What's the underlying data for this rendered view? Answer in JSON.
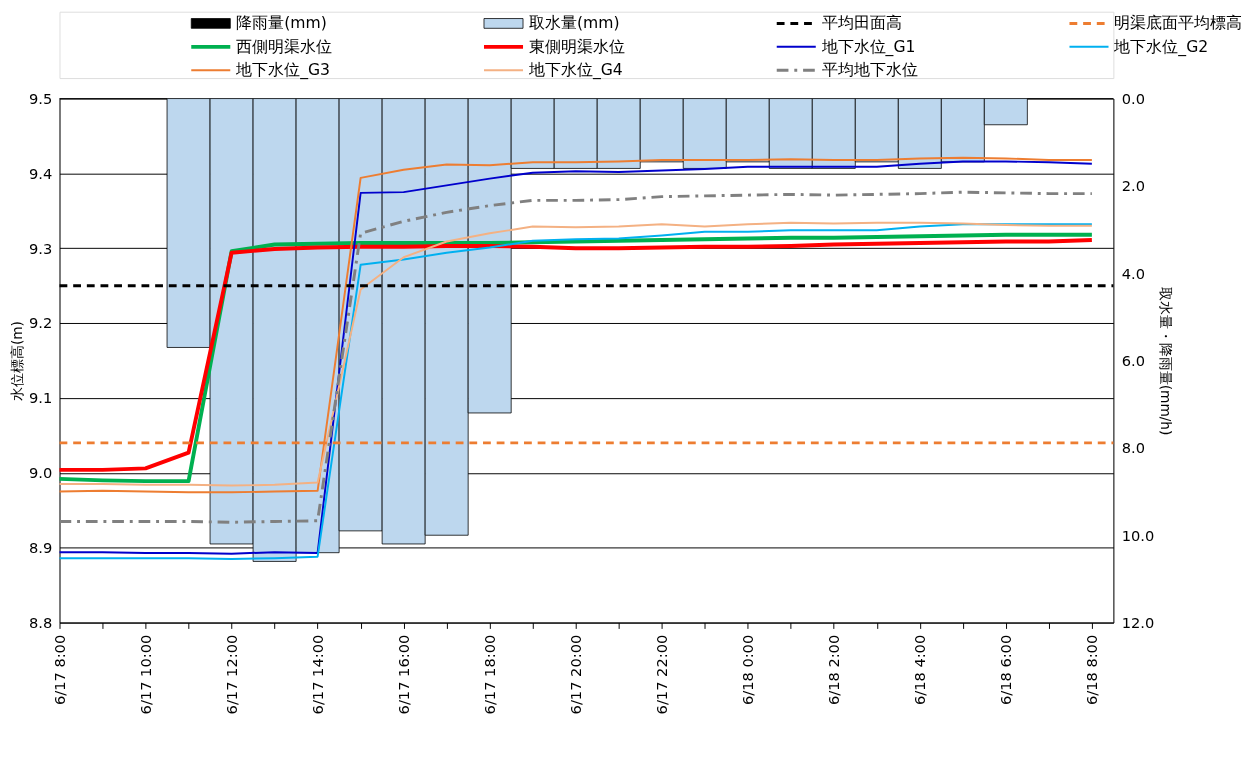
{
  "chart_data": {
    "type": "line",
    "categories": [
      "6/17 8:00",
      null,
      "6/17 10:00",
      null,
      "6/17 12:00",
      null,
      "6/17 14:00",
      null,
      "6/17 16:00",
      null,
      "6/17 18:00",
      null,
      "6/17 20:00",
      null,
      "6/17 22:00",
      null,
      "6/18 0:00",
      null,
      "6/18 2:00",
      null,
      "6/18 4:00",
      null,
      "6/18 6:00",
      null,
      "6/18 8:00"
    ],
    "ylabel": "水位標高(m)",
    "y2label": "取水量・降雨量(mm/h)",
    "ylim": [
      8.8,
      9.5
    ],
    "yticks": [
      {
        "value": 8.8,
        "label": "8.8"
      },
      {
        "value": 8.9,
        "label": "8.9"
      },
      {
        "value": 9.0,
        "label": "9.0"
      },
      {
        "value": 9.1,
        "label": "9.1"
      },
      {
        "value": 9.2,
        "label": "9.2"
      },
      {
        "value": 9.3,
        "label": "9.3"
      },
      {
        "value": 9.4,
        "label": "9.4"
      },
      {
        "value": 9.5,
        "label": "9.5"
      }
    ],
    "y2lim": [
      12,
      0
    ],
    "y2ticks": [
      {
        "value": 0,
        "label": "0.0"
      },
      {
        "value": 2,
        "label": "2.0"
      },
      {
        "value": 4,
        "label": "4.0"
      },
      {
        "value": 6,
        "label": "6.0"
      },
      {
        "value": 8,
        "label": "8.0"
      },
      {
        "value": 10,
        "label": "10.0"
      },
      {
        "value": 12,
        "label": "12.0"
      }
    ],
    "grid": "y",
    "legend": "top",
    "series": [
      {
        "name": "降雨量(mm)",
        "type": "bar",
        "axis": "y2",
        "color": "#000000",
        "values": [
          0,
          0,
          0,
          0,
          0,
          0,
          0,
          0,
          0,
          0,
          0,
          0,
          0,
          0,
          0,
          0,
          0,
          0,
          0,
          0,
          0,
          0,
          0,
          0,
          0
        ]
      },
      {
        "name": "取水量(mm)",
        "type": "bar",
        "axis": "y2",
        "color": "#bdd7ee",
        "values": [
          0,
          0,
          0,
          5.7,
          10.2,
          10.6,
          10.4,
          9.9,
          10.2,
          10.0,
          7.2,
          1.6,
          1.6,
          1.6,
          1.45,
          1.6,
          1.45,
          1.6,
          1.6,
          1.45,
          1.6,
          1.45,
          0.6,
          0,
          0
        ]
      },
      {
        "name": "西側明渠水位",
        "color": "#00b050",
        "line_style": "solid",
        "values": [
          8.992,
          8.99,
          8.989,
          8.989,
          9.296,
          9.305,
          9.306,
          9.307,
          9.307,
          9.307,
          9.307,
          9.308,
          9.309,
          9.31,
          9.311,
          9.312,
          9.313,
          9.314,
          9.314,
          9.315,
          9.316,
          9.317,
          9.318,
          9.318,
          9.318
        ]
      },
      {
        "name": "東側明渠水位",
        "color": "#ff0000",
        "line_style": "solid",
        "values": [
          9.004,
          9.004,
          9.006,
          9.027,
          9.294,
          9.299,
          9.301,
          9.302,
          9.302,
          9.303,
          9.303,
          9.302,
          9.3,
          9.3,
          9.301,
          9.302,
          9.302,
          9.303,
          9.305,
          9.306,
          9.307,
          9.308,
          9.309,
          9.309,
          9.311
        ]
      },
      {
        "name": "地下水位_G1",
        "color": "#0000cc",
        "line_style": "solid",
        "values": [
          8.894,
          8.894,
          8.893,
          8.893,
          8.892,
          8.894,
          8.893,
          9.374,
          9.375,
          9.384,
          9.393,
          9.401,
          9.403,
          9.402,
          9.404,
          9.406,
          9.409,
          9.409,
          9.409,
          9.409,
          9.413,
          9.416,
          9.416,
          9.415,
          9.413
        ]
      },
      {
        "name": "地下水位_G2",
        "color": "#00b0f0",
        "line_style": "solid",
        "values": [
          8.886,
          8.886,
          8.886,
          8.886,
          8.885,
          8.886,
          8.888,
          9.278,
          9.285,
          9.294,
          9.301,
          9.31,
          9.312,
          9.313,
          9.317,
          9.322,
          9.322,
          9.324,
          9.324,
          9.324,
          9.329,
          9.332,
          9.332,
          9.332,
          9.332
        ]
      },
      {
        "name": "地下水位_G3",
        "color": "#ed7d31",
        "line_style": "solid",
        "values": [
          8.975,
          8.976,
          8.975,
          8.974,
          8.974,
          8.975,
          8.976,
          9.394,
          9.405,
          9.412,
          9.411,
          9.415,
          9.415,
          9.416,
          9.418,
          9.418,
          9.418,
          9.419,
          9.418,
          9.418,
          9.42,
          9.421,
          9.42,
          9.418,
          9.418
        ]
      },
      {
        "name": "地下水位_G4",
        "color": "#f4b183",
        "line_style": "solid",
        "values": [
          8.985,
          8.985,
          8.984,
          8.984,
          8.983,
          8.984,
          8.987,
          9.245,
          9.288,
          9.309,
          9.32,
          9.329,
          9.328,
          9.329,
          9.332,
          9.329,
          9.332,
          9.334,
          9.333,
          9.334,
          9.334,
          9.333,
          9.331,
          9.33,
          9.33
        ]
      },
      {
        "name": "平均地下水位",
        "color": "#808080",
        "line_style": "dashed",
        "values": [
          8.935,
          8.935,
          8.935,
          8.935,
          8.934,
          8.935,
          8.936,
          9.32,
          9.336,
          9.348,
          9.357,
          9.364,
          9.364,
          9.365,
          9.369,
          9.37,
          9.371,
          9.372,
          9.371,
          9.372,
          9.373,
          9.375,
          9.374,
          9.373,
          9.373
        ]
      }
    ],
    "ref_lines": [
      {
        "axis": "y",
        "value": 9.25,
        "label": "平均田面高",
        "color": "#000000",
        "line_style": "dashed"
      },
      {
        "axis": "y",
        "value": 9.04,
        "label": "明渠底面平均標高",
        "color": "#ed7d31",
        "line_style": "dashed"
      }
    ]
  }
}
